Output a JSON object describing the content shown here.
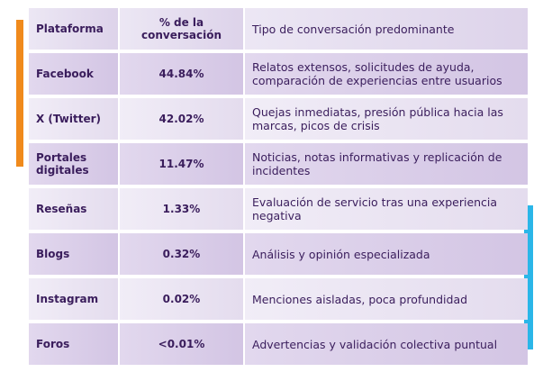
{
  "table": {
    "header": [
      "Plataforma",
      "% de la conversación",
      "Tipo de conversación predominante"
    ],
    "rows": [
      [
        "Facebook",
        "44.84%",
        "Relatos extensos, solicitudes de ayuda, comparación de experiencias entre usuarios"
      ],
      [
        "X (Twitter)",
        "42.02%",
        "Quejas inmediatas, presión pública hacia las marcas, picos de crisis"
      ],
      [
        "Portales digitales",
        "11.47%",
        "Noticias, notas informativas y replicación de incidentes"
      ],
      [
        "Reseñas",
        "1.33%",
        "Evaluación de servicio tras una experiencia negativa"
      ],
      [
        "Blogs",
        "0.32%",
        "Análisis y opinión especializada"
      ],
      [
        "Instagram",
        "0.02%",
        "Menciones aisladas, poca profundidad"
      ],
      [
        "Foros",
        "<0.01%",
        "Advertencias y validación colectiva puntual"
      ]
    ]
  }
}
